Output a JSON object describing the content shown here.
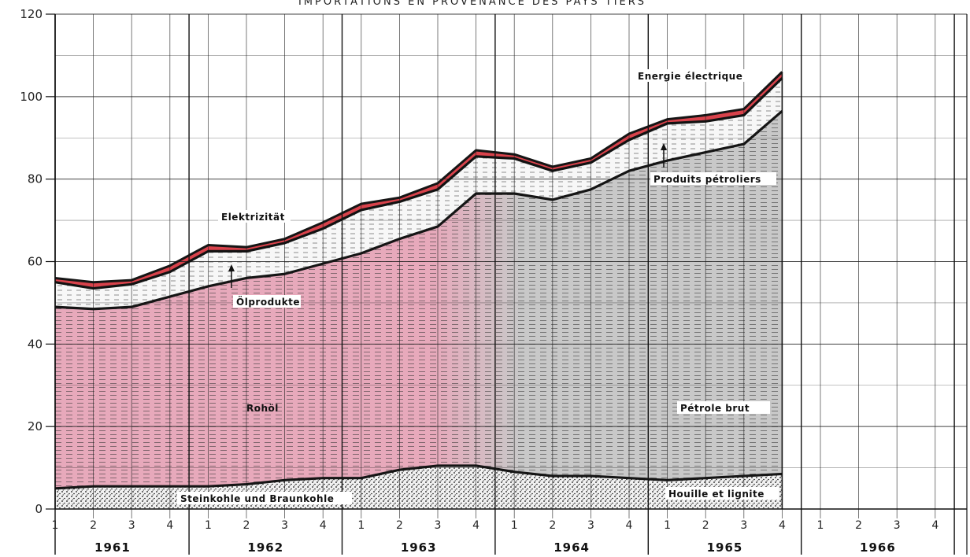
{
  "chart_data": {
    "type": "area",
    "stacked": true,
    "title": "IMPORTATIONS EN PROVENANCE DES PAYS TIERS",
    "ylim": [
      0,
      120
    ],
    "yticks": [
      0,
      20,
      40,
      60,
      80,
      100,
      120
    ],
    "quarter_labels": [
      "1",
      "2",
      "3",
      "4",
      "1",
      "2",
      "3",
      "4",
      "1",
      "2",
      "3",
      "4",
      "1",
      "2",
      "3",
      "4",
      "1",
      "2",
      "3",
      "4",
      "1",
      "2",
      "3",
      "4"
    ],
    "years": [
      "1961",
      "1962",
      "1963",
      "1964",
      "1965",
      "1966"
    ],
    "series": [
      {
        "name": "Steinkohle und Braunkohle",
        "name_fr": "Houille et lignite",
        "cumulative": [
          5,
          5.5,
          5.5,
          5.5,
          5.5,
          6,
          7,
          7.5,
          7.5,
          9.5,
          10.5,
          10.5,
          9,
          8,
          8,
          7.5,
          7,
          7.5,
          8,
          8.5
        ]
      },
      {
        "name": "Rohöl",
        "name_fr": "Pétrole brut",
        "cumulative": [
          49,
          48.5,
          49,
          51.5,
          54,
          56,
          57,
          59.5,
          62,
          65.5,
          68.5,
          76.5,
          76.5,
          75,
          77.5,
          82,
          84.5,
          86.5,
          88.5,
          96.5
        ]
      },
      {
        "name": "Ölprodukte",
        "name_fr": "Produits pétroliers",
        "cumulative": [
          55,
          53.5,
          54.5,
          57.5,
          62.5,
          62.5,
          64.5,
          68,
          72.5,
          74.5,
          77.5,
          85.5,
          85,
          82,
          84,
          89.5,
          93.5,
          94,
          95.5,
          104.5
        ]
      },
      {
        "name": "Elektrizität",
        "name_fr": "Energie électrique",
        "cumulative": [
          56,
          55,
          55.5,
          59,
          64,
          63.5,
          65.5,
          69.5,
          74,
          75.5,
          79,
          87,
          86,
          83,
          85,
          91,
          94.5,
          95.5,
          97,
          106
        ]
      }
    ],
    "colors": {
      "pink": "#e7a9bb",
      "gray": "#c8c8c8",
      "red": "#d8424b",
      "line": "#151515"
    }
  }
}
